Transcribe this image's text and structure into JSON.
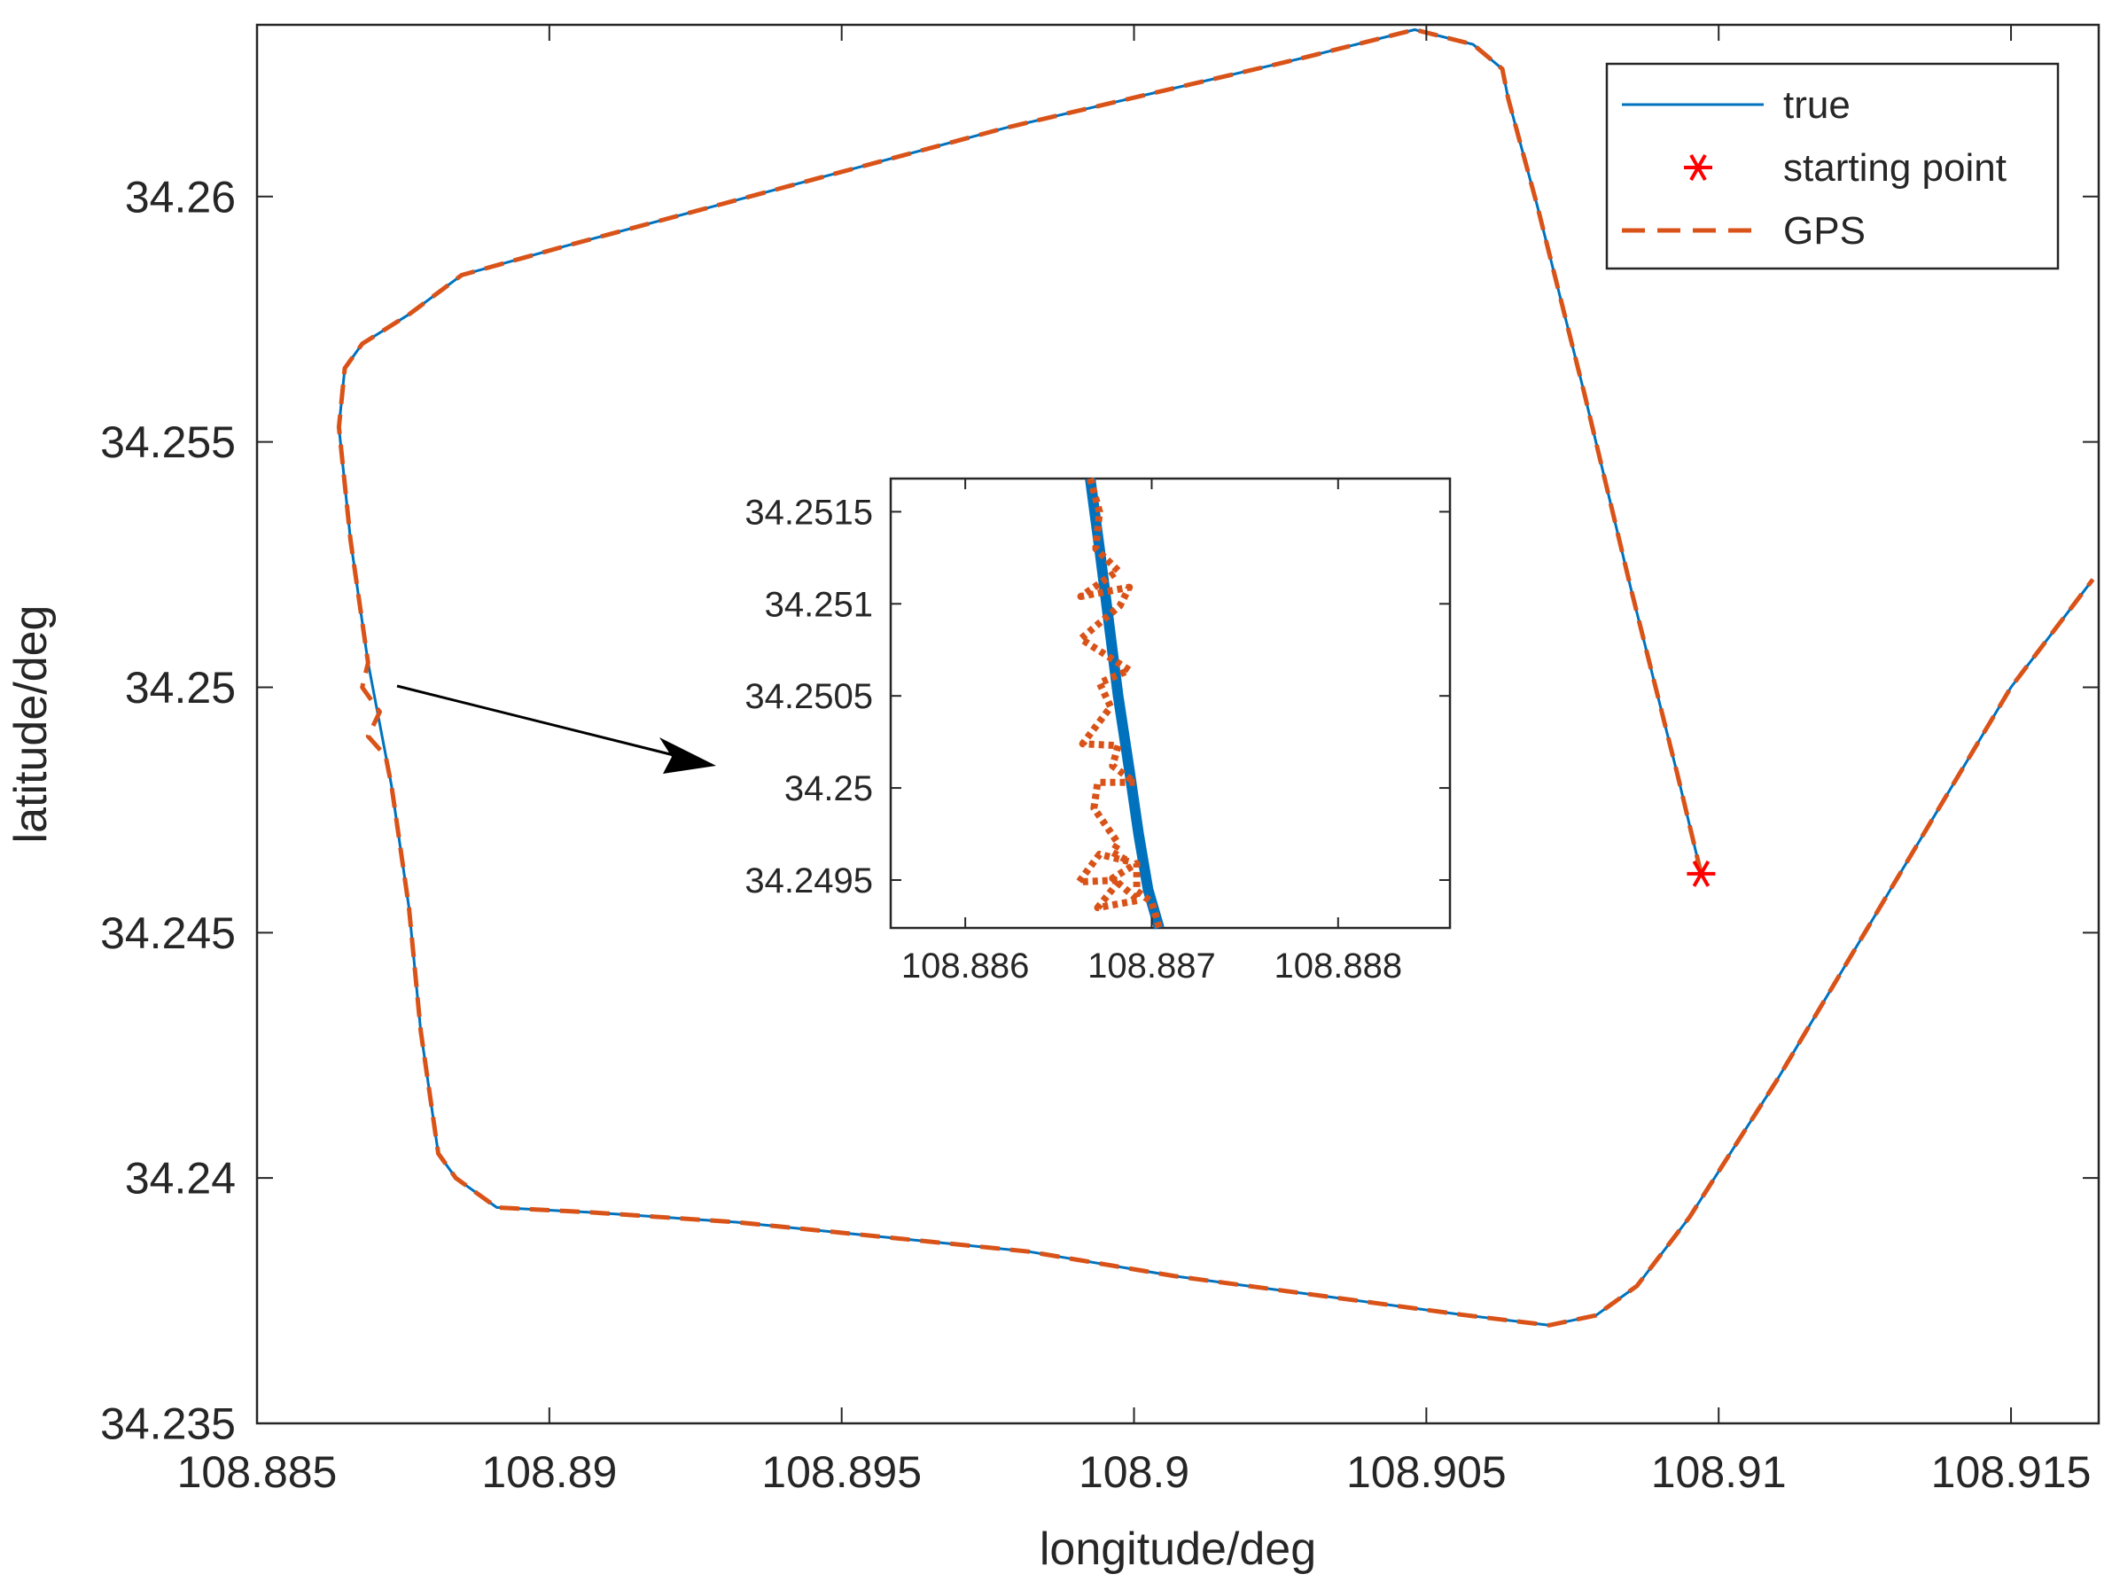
{
  "chart_data": [
    {
      "id": "main",
      "type": "line",
      "xlabel": "longitude/deg",
      "ylabel": "latitude/deg",
      "xlim": [
        108.885,
        108.9165
      ],
      "ylim": [
        34.235,
        34.2635
      ],
      "xticks": [
        108.885,
        108.89,
        108.895,
        108.9,
        108.905,
        108.91,
        108.915
      ],
      "xtick_labels": [
        "108.885",
        "108.89",
        "108.895",
        "108.9",
        "108.905",
        "108.91",
        "108.915"
      ],
      "yticks": [
        34.235,
        34.24,
        34.245,
        34.25,
        34.255,
        34.26
      ],
      "ytick_labels": [
        "34.235",
        "34.24",
        "34.245",
        "34.25",
        "34.255",
        "34.26"
      ],
      "grid": false,
      "legend_position": "top-right",
      "legend": [
        {
          "label": "true",
          "style": "solid-line",
          "color": "#0072BD"
        },
        {
          "label": "starting point",
          "style": "asterisk-marker",
          "color": "#FF0000"
        },
        {
          "label": "GPS",
          "style": "dashed-line",
          "color": "#D95319"
        }
      ],
      "series": [
        {
          "name": "true",
          "color": "#0072BD",
          "style": "solid",
          "x": [
            108.9097,
            108.9093,
            108.9085,
            108.9077,
            108.9069,
            108.9064,
            108.9063,
            108.9058,
            108.9048,
            108.9028,
            108.9003,
            108.8978,
            108.8953,
            108.8928,
            108.8903,
            108.8885,
            108.8876,
            108.8868,
            108.8865,
            108.8864,
            108.8866,
            108.8869,
            108.8873,
            108.8876,
            108.8878,
            108.8881,
            108.8884,
            108.8891,
            108.8907,
            108.8932,
            108.8957,
            108.8982,
            108.9007,
            108.9032,
            108.9057,
            108.9071,
            108.9079,
            108.9086,
            108.9095,
            108.911,
            108.913,
            108.915,
            108.9164
          ],
          "y": [
            34.2462,
            34.2482,
            34.252,
            34.256,
            34.2598,
            34.262,
            34.2626,
            34.2631,
            34.2634,
            34.2628,
            34.2621,
            34.2614,
            34.2606,
            34.2598,
            34.259,
            34.2584,
            34.2576,
            34.257,
            34.2565,
            34.2553,
            34.253,
            34.2505,
            34.248,
            34.2455,
            34.243,
            34.2405,
            34.24,
            34.2394,
            34.2393,
            34.2391,
            34.2388,
            34.2385,
            34.238,
            34.2376,
            34.2372,
            34.237,
            34.2372,
            34.2378,
            34.2392,
            34.242,
            34.246,
            34.25,
            34.2522
          ]
        },
        {
          "name": "GPS",
          "color": "#D95319",
          "style": "dashed",
          "x": [
            108.9097,
            108.9093,
            108.9085,
            108.9077,
            108.9069,
            108.9064,
            108.9063,
            108.9058,
            108.9048,
            108.9028,
            108.9003,
            108.8978,
            108.8953,
            108.8928,
            108.8903,
            108.8885,
            108.8876,
            108.8868,
            108.8865,
            108.8864,
            108.8866,
            108.8869,
            108.8868,
            108.8871,
            108.8869,
            108.8872,
            108.8873,
            108.8876,
            108.8878,
            108.8881,
            108.8884,
            108.8891,
            108.8907,
            108.8932,
            108.8957,
            108.8982,
            108.9007,
            108.9032,
            108.9057,
            108.9071,
            108.9079,
            108.9086,
            108.9095,
            108.911,
            108.913,
            108.915,
            108.9164
          ],
          "y": [
            34.2462,
            34.2482,
            34.252,
            34.256,
            34.2598,
            34.262,
            34.2626,
            34.2631,
            34.2634,
            34.2628,
            34.2621,
            34.2614,
            34.2606,
            34.2598,
            34.259,
            34.2584,
            34.2576,
            34.257,
            34.2565,
            34.2553,
            34.253,
            34.2505,
            34.25,
            34.2495,
            34.249,
            34.2486,
            34.248,
            34.2455,
            34.243,
            34.2405,
            34.24,
            34.2394,
            34.2393,
            34.2391,
            34.2388,
            34.2385,
            34.238,
            34.2376,
            34.2372,
            34.237,
            34.2372,
            34.2378,
            34.2392,
            34.242,
            34.246,
            34.25,
            34.2522
          ]
        }
      ],
      "markers": [
        {
          "name": "starting point",
          "x": 108.9097,
          "y": 34.2462,
          "color": "#FF0000",
          "symbol": "asterisk"
        }
      ]
    },
    {
      "id": "inset",
      "type": "line",
      "xlim": [
        108.8856,
        108.8886
      ],
      "ylim": [
        34.24924,
        34.25168
      ],
      "xticks": [
        108.886,
        108.887,
        108.888
      ],
      "xtick_labels": [
        "108.886",
        "108.887",
        "108.888"
      ],
      "yticks": [
        34.2495,
        34.25,
        34.2505,
        34.251,
        34.2515
      ],
      "ytick_labels": [
        "34.2495",
        "34.25",
        "34.2505",
        "34.251",
        "34.2515"
      ],
      "grid": false,
      "series": [
        {
          "name": "true",
          "color": "#0072BD",
          "style": "solid",
          "x": [
            108.88667,
            108.88672,
            108.88677,
            108.88682,
            108.88688,
            108.88693,
            108.88698,
            108.88704
          ],
          "y": [
            34.25168,
            34.2513,
            34.2509,
            34.2505,
            34.2501,
            34.24975,
            34.24945,
            34.24924
          ]
        },
        {
          "name": "GPS",
          "color": "#D95319",
          "style": "dotted",
          "x": [
            108.88667,
            108.88672,
            108.8867,
            108.88682,
            108.88662,
            108.88688,
            108.88683,
            108.88662,
            108.88688,
            108.88672,
            108.88678,
            108.88663,
            108.88682,
            108.88679,
            108.88691,
            108.88671,
            108.88669,
            108.88682,
            108.88679,
            108.88688,
            108.88672,
            108.88661,
            108.88683,
            108.88671,
            108.88693,
            108.88679,
            108.88692,
            108.88692,
            108.887,
            108.88704
          ],
          "y": [
            34.25168,
            34.2515,
            34.2513,
            34.25118,
            34.25104,
            34.25109,
            34.25099,
            34.25081,
            34.25064,
            34.25057,
            34.25044,
            34.25024,
            34.25023,
            34.25012,
            34.25003,
            34.25003,
            34.24989,
            34.2497,
            34.24965,
            34.2496,
            34.24964,
            34.24949,
            34.2495,
            34.24935,
            34.24939,
            34.24951,
            34.24959,
            34.24944,
            34.24938,
            34.24924
          ]
        }
      ]
    }
  ]
}
